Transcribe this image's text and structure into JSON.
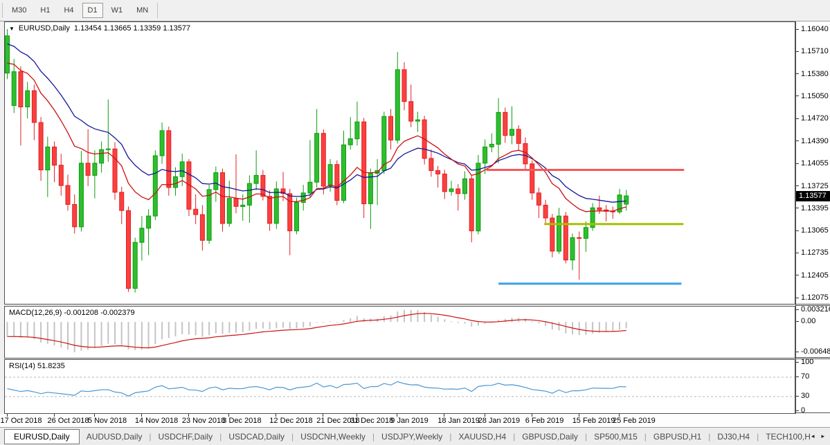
{
  "toolbar": {
    "timeframes": [
      {
        "label": "M30",
        "active": false
      },
      {
        "label": "H1",
        "active": false
      },
      {
        "label": "H4",
        "active": false
      },
      {
        "label": "D1",
        "active": true
      },
      {
        "label": "W1",
        "active": false
      },
      {
        "label": "MN",
        "active": false
      }
    ]
  },
  "title": {
    "symbol": "EURUSD,Daily",
    "ohlc": "1.13454 1.13665 1.13359 1.13577",
    "open": "1.13454",
    "high": "1.13665",
    "low": "1.13359",
    "close": "1.13577"
  },
  "panels": {
    "macd": {
      "label": "MACD(12,26,9)",
      "values": "-0.001208 -0.002379",
      "axis": [
        "0.003216",
        "0.00",
        "-0.006485"
      ]
    },
    "rsi": {
      "label": "RSI(14)",
      "value": "51.8235",
      "axis": [
        100,
        70,
        30,
        0
      ],
      "levels": [
        70,
        30
      ]
    }
  },
  "price_axis": {
    "current": "1.13577",
    "ticks": [
      1.1604,
      1.1571,
      1.1538,
      1.1505,
      1.1472,
      1.1439,
      1.14055,
      1.13725,
      1.13395,
      1.13065,
      1.12735,
      1.12405,
      1.12075
    ],
    "tick_labels": [
      "1.16040",
      "1.15710",
      "1.15380",
      "1.15050",
      "1.14720",
      "1.14390",
      "1.14055",
      "1.13725",
      "1.13395",
      "1.13065",
      "1.12735",
      "1.12405",
      "1.12075"
    ]
  },
  "x_axis": {
    "labels": [
      {
        "text": "17 Oct 2018",
        "index": 0
      },
      {
        "text": "26 Oct 2018",
        "index": 7
      },
      {
        "text": "5 Nov 2018",
        "index": 13
      },
      {
        "text": "14 Nov 2018",
        "index": 20
      },
      {
        "text": "23 Nov 2018",
        "index": 27
      },
      {
        "text": "3 Dec 2018",
        "index": 33
      },
      {
        "text": "12 Dec 2018",
        "index": 40
      },
      {
        "text": "21 Dec 2018",
        "index": 47
      },
      {
        "text": "31 Dec 2018",
        "index": 52
      },
      {
        "text": "9 Jan 2019",
        "index": 58
      },
      {
        "text": "18 Jan 2019",
        "index": 65
      },
      {
        "text": "28 Jan 2019",
        "index": 71
      },
      {
        "text": "6 Feb 2019",
        "index": 78
      },
      {
        "text": "15 Feb 2019",
        "index": 85
      },
      {
        "text": "25 Feb 2019",
        "index": 91
      }
    ]
  },
  "tabs": {
    "items": [
      {
        "label": "EURUSD,Daily",
        "active": true
      },
      {
        "label": "AUDUSD,Daily",
        "active": false
      },
      {
        "label": "USDCHF,Daily",
        "active": false
      },
      {
        "label": "USDCAD,Daily",
        "active": false
      },
      {
        "label": "USDCNH,Weekly",
        "active": false
      },
      {
        "label": "USDJPY,Weekly",
        "active": false
      },
      {
        "label": "XAUUSD,H4",
        "active": false
      },
      {
        "label": "GBPUSD,Daily",
        "active": false
      },
      {
        "label": "SP500,M15",
        "active": false
      },
      {
        "label": "GBPUSD,H1",
        "active": false
      },
      {
        "label": "DJ30,H4",
        "active": false
      },
      {
        "label": "TECH100,H",
        "active": false
      }
    ],
    "scroll_left_icon": "◂",
    "scroll_right_icon": "▸"
  },
  "colors": {
    "bull_fill": "#2fbe2f",
    "bull_border": "#0e9c0e",
    "bear_fill": "#fb4040",
    "bear_border": "#df2121",
    "ma_fast": "#cc1111",
    "ma_slow": "#16169a",
    "macd_hist": "#c4c4c4",
    "macd_signal": "#cc1111",
    "rsi_line": "#4a96d2",
    "rsi_level": "#b4b4b4",
    "hline_red": "#f95757",
    "hline_olive": "#a6c000",
    "hline_blue": "#38a0e3",
    "price_tag_bg": "#000000",
    "price_tag_text": "#ffffff"
  },
  "chart_data": {
    "type": "candlestick",
    "symbol": "EURUSD",
    "timeframe": "Daily",
    "y_range": {
      "top": 1.1604,
      "bottom": 1.12075
    },
    "open": [
      1.1539,
      1.1491,
      1.1541,
      1.1489,
      1.1513,
      1.1466,
      1.1396,
      1.143,
      1.1403,
      1.1373,
      1.1345,
      1.1312,
      1.1406,
      1.1388,
      1.1406,
      1.1426,
      1.1427,
      1.1363,
      1.1336,
      1.1221,
      1.1289,
      1.131,
      1.1328,
      1.1417,
      1.1454,
      1.137,
      1.1386,
      1.1408,
      1.1338,
      1.133,
      1.1292,
      1.1367,
      1.1392,
      1.1317,
      1.1354,
      1.1342,
      1.1344,
      1.1376,
      1.1388,
      1.1357,
      1.1317,
      1.1368,
      1.1361,
      1.1306,
      1.1348,
      1.1362,
      1.1378,
      1.145,
      1.1372,
      1.1404,
      1.1351,
      1.1433,
      1.1442,
      1.1467,
      1.1346,
      1.1391,
      1.1395,
      1.1475,
      1.144,
      1.1544,
      1.1497,
      1.1468,
      1.147,
      1.1413,
      1.1395,
      1.139,
      1.1364,
      1.1368,
      1.1361,
      1.1383,
      1.1306,
      1.1406,
      1.143,
      1.1434,
      1.1481,
      1.1447,
      1.1456,
      1.1435,
      1.1405,
      1.1362,
      1.1344,
      1.1325,
      1.1276,
      1.1328,
      1.1263,
      1.1296,
      1.1295,
      1.1311,
      1.134,
      1.1337,
      1.1335,
      1.1334,
      1.13454
    ],
    "high": [
      1.1604,
      1.156,
      1.1549,
      1.1526,
      1.1522,
      1.1474,
      1.1445,
      1.1438,
      1.142,
      1.1389,
      1.136,
      1.1424,
      1.1456,
      1.1425,
      1.1438,
      1.15,
      1.1437,
      1.1371,
      1.1342,
      1.1296,
      1.1328,
      1.1338,
      1.1425,
      1.1466,
      1.146,
      1.14,
      1.142,
      1.1412,
      1.136,
      1.1344,
      1.1374,
      1.1401,
      1.1398,
      1.138,
      1.1419,
      1.136,
      1.1388,
      1.1425,
      1.1396,
      1.1366,
      1.1379,
      1.1393,
      1.1368,
      1.1355,
      1.1374,
      1.144,
      1.1486,
      1.1456,
      1.1412,
      1.141,
      1.1454,
      1.1474,
      1.1497,
      1.1473,
      1.1398,
      1.1412,
      1.1482,
      1.1486,
      1.157,
      1.1555,
      1.1522,
      1.1482,
      1.1476,
      1.1426,
      1.1402,
      1.1396,
      1.138,
      1.1375,
      1.1394,
      1.1388,
      1.1418,
      1.1441,
      1.145,
      1.1502,
      1.1488,
      1.149,
      1.1462,
      1.1444,
      1.141,
      1.137,
      1.1352,
      1.1331,
      1.134,
      1.1334,
      1.1302,
      1.1305,
      1.132,
      1.1347,
      1.1358,
      1.1344,
      1.1342,
      1.1368,
      1.13665
    ],
    "low": [
      1.153,
      1.148,
      1.1432,
      1.1472,
      1.144,
      1.138,
      1.1356,
      1.1378,
      1.1358,
      1.1336,
      1.1302,
      1.1305,
      1.1372,
      1.1354,
      1.1392,
      1.1408,
      1.1352,
      1.1316,
      1.1216,
      1.1215,
      1.1262,
      1.127,
      1.1322,
      1.1405,
      1.1358,
      1.1358,
      1.1372,
      1.1328,
      1.1316,
      1.1277,
      1.1287,
      1.1349,
      1.1305,
      1.1312,
      1.1332,
      1.1321,
      1.1318,
      1.1366,
      1.1351,
      1.1306,
      1.1309,
      1.135,
      1.127,
      1.1301,
      1.1336,
      1.1356,
      1.137,
      1.136,
      1.1364,
      1.1344,
      1.1347,
      1.1426,
      1.1432,
      1.1325,
      1.1309,
      1.1344,
      1.139,
      1.1426,
      1.1435,
      1.1484,
      1.1459,
      1.1452,
      1.1404,
      1.1386,
      1.137,
      1.1353,
      1.1358,
      1.1336,
      1.1352,
      1.1289,
      1.1301,
      1.139,
      1.1422,
      1.1406,
      1.1436,
      1.1434,
      1.1424,
      1.1396,
      1.1352,
      1.1325,
      1.1318,
      1.1267,
      1.1272,
      1.1258,
      1.1248,
      1.1234,
      1.1275,
      1.1306,
      1.1331,
      1.132,
      1.1324,
      1.1331,
      1.13359
    ],
    "close": [
      1.1594,
      1.1541,
      1.1489,
      1.1513,
      1.1466,
      1.1396,
      1.143,
      1.1403,
      1.1373,
      1.1345,
      1.1312,
      1.1406,
      1.1388,
      1.1406,
      1.1426,
      1.1427,
      1.1363,
      1.1336,
      1.1221,
      1.1289,
      1.131,
      1.1328,
      1.1417,
      1.1454,
      1.137,
      1.1386,
      1.1408,
      1.1338,
      1.133,
      1.1292,
      1.1367,
      1.1392,
      1.1317,
      1.1354,
      1.1342,
      1.1344,
      1.1376,
      1.1388,
      1.1357,
      1.1317,
      1.1368,
      1.1361,
      1.1306,
      1.1348,
      1.1362,
      1.1378,
      1.145,
      1.1372,
      1.1404,
      1.1351,
      1.1433,
      1.1442,
      1.1467,
      1.1346,
      1.1391,
      1.1395,
      1.1475,
      1.144,
      1.1544,
      1.1497,
      1.1468,
      1.147,
      1.1413,
      1.1395,
      1.139,
      1.1364,
      1.1368,
      1.1361,
      1.1383,
      1.1306,
      1.1406,
      1.143,
      1.1434,
      1.1481,
      1.1447,
      1.1456,
      1.1435,
      1.1405,
      1.1362,
      1.1344,
      1.1325,
      1.1276,
      1.1328,
      1.1263,
      1.1296,
      1.1295,
      1.1311,
      1.134,
      1.1337,
      1.1335,
      1.1334,
      1.1359,
      1.13577
    ],
    "overlays": [
      {
        "name": "ma-fast",
        "type": "ema",
        "period": 13,
        "color": "#cc1111"
      },
      {
        "name": "ma-slow",
        "type": "ema",
        "period": 21,
        "color": "#16169a"
      }
    ],
    "hlines": [
      {
        "name": "resistance-line",
        "price": 1.1396,
        "color": "#f95757",
        "from_index": 71.2,
        "to_index": 100.6
      },
      {
        "name": "support-line-olive",
        "price": 1.1316,
        "color": "#a6c000",
        "from_index": 79.8,
        "to_index": 100.5
      },
      {
        "name": "support-line-blue",
        "price": 1.1228,
        "color": "#38a0e3",
        "from_index": 73.0,
        "to_index": 100.2
      }
    ],
    "indicators": {
      "macd": {
        "fast": 12,
        "slow": 26,
        "signal": 9
      },
      "rsi": {
        "period": 14,
        "levels": [
          70,
          30
        ]
      }
    }
  }
}
